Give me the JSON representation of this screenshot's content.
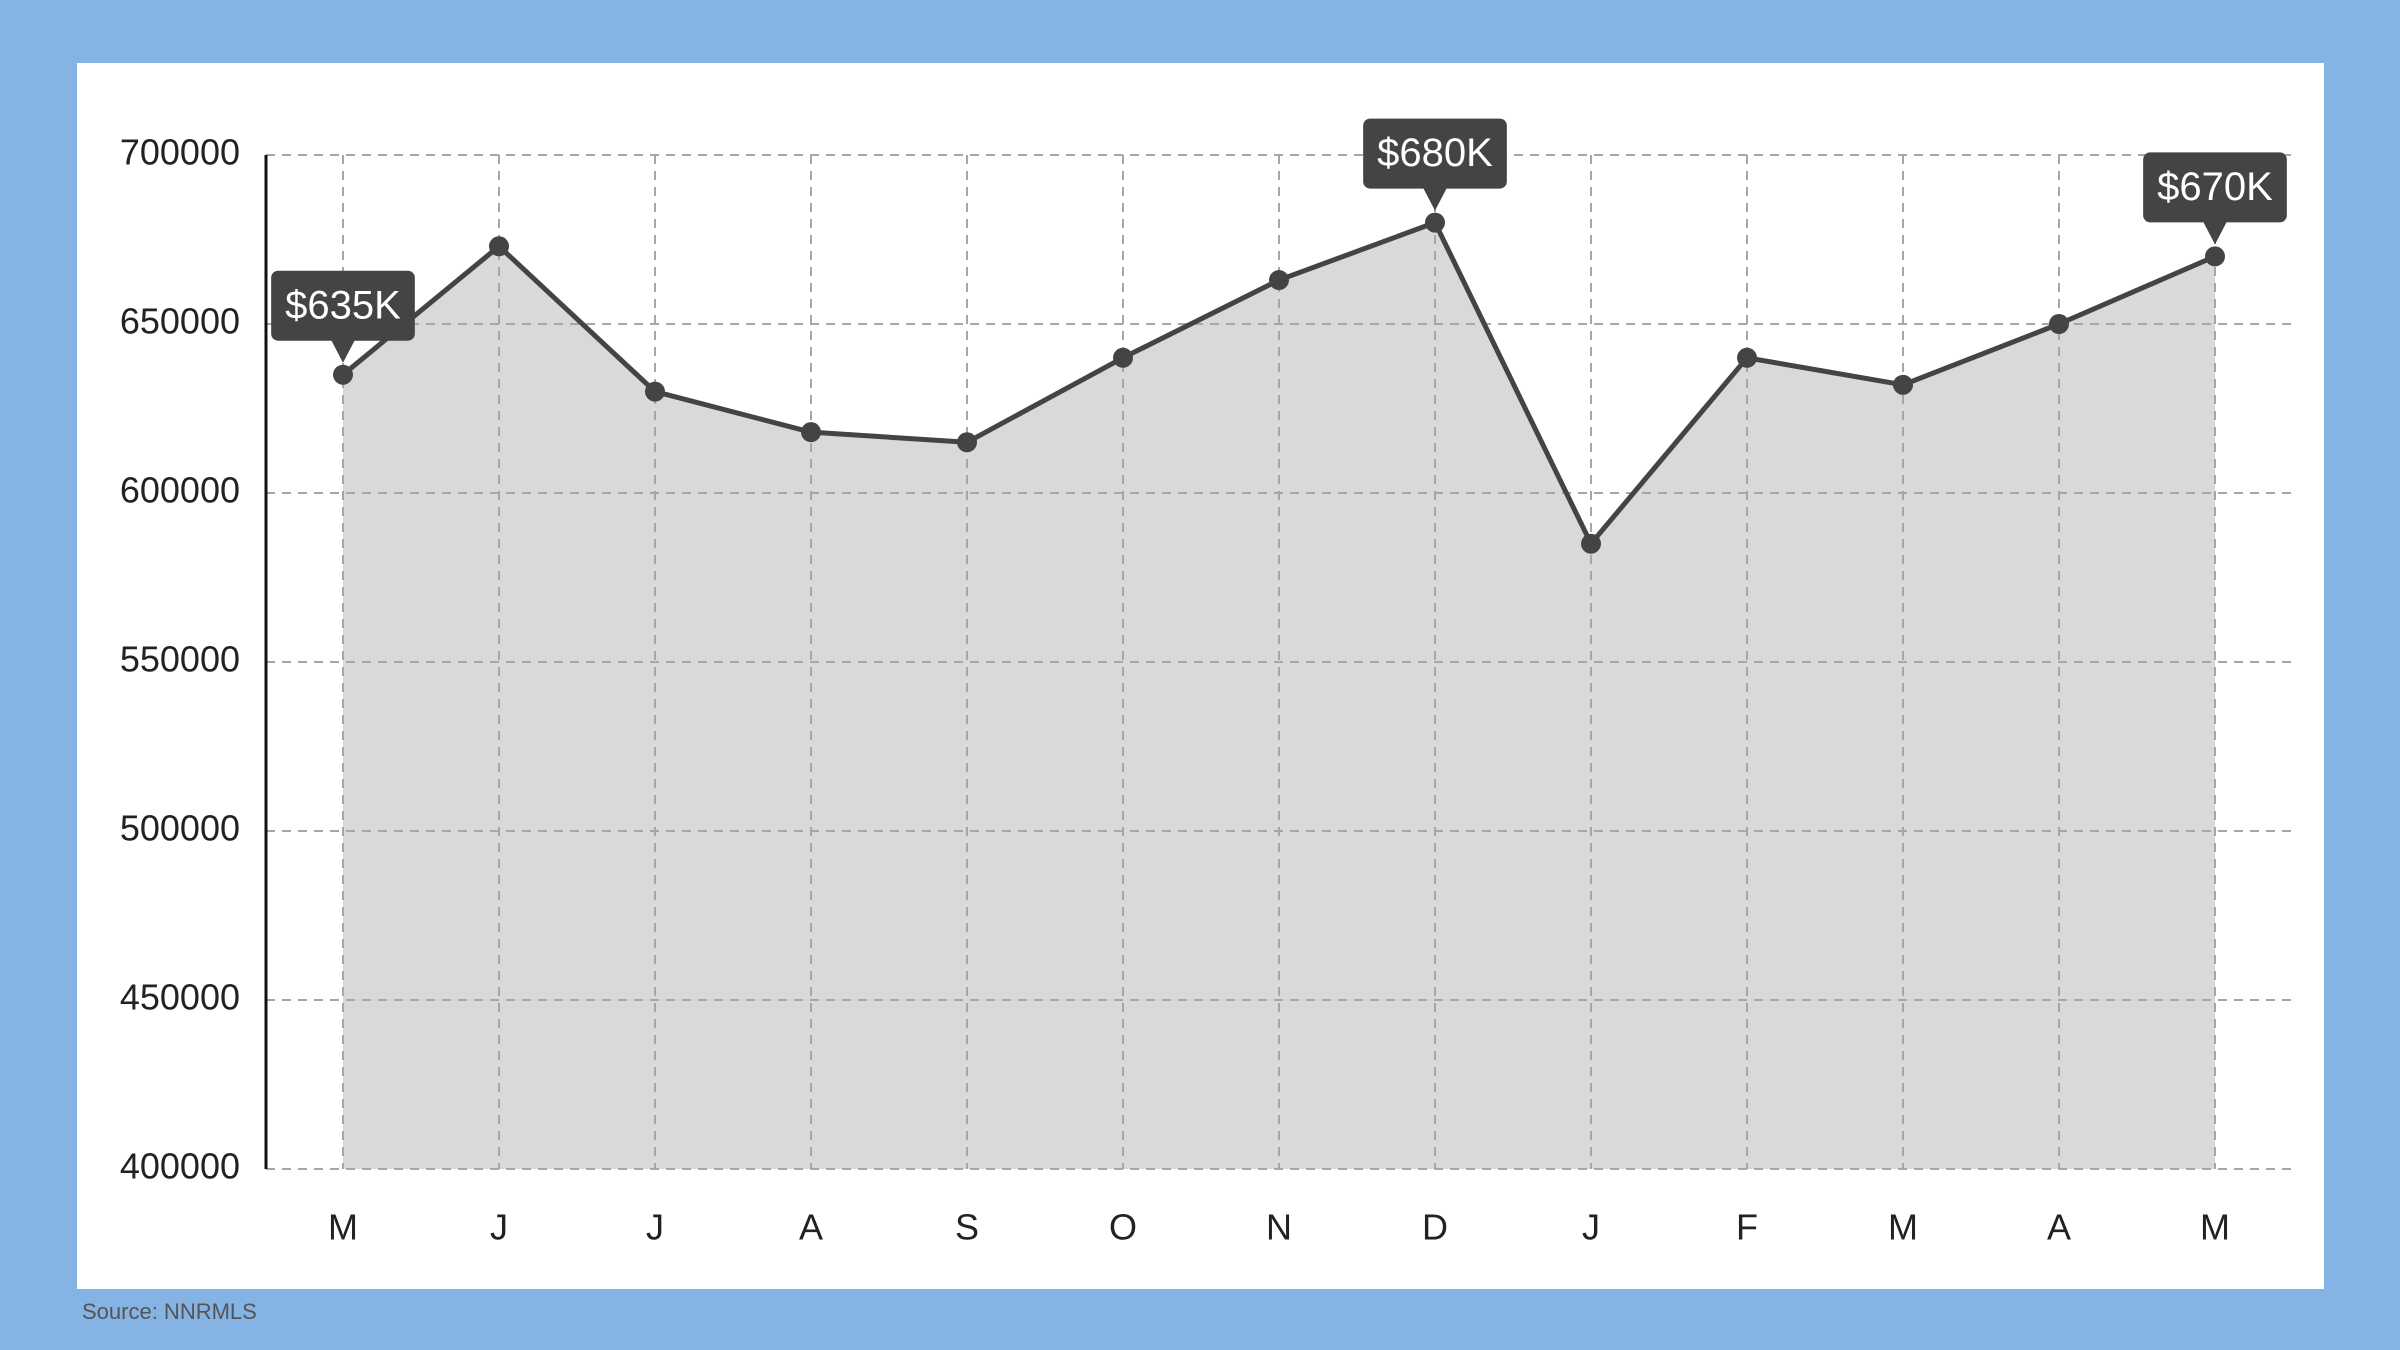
{
  "chart_data": {
    "type": "area",
    "categories": [
      "M",
      "J",
      "J",
      "A",
      "S",
      "O",
      "N",
      "D",
      "J",
      "F",
      "M",
      "A",
      "M"
    ],
    "values": [
      635000,
      673000,
      630000,
      618000,
      615000,
      640000,
      663000,
      680000,
      585000,
      640000,
      632000,
      650000,
      670000
    ],
    "value_labels": [
      "$635K",
      null,
      null,
      null,
      null,
      null,
      null,
      "$680K",
      null,
      null,
      null,
      null,
      "$670K"
    ],
    "color": "#444444",
    "fill": "#d9d9d9",
    "ylim": [
      400000,
      700000
    ],
    "yticks": [
      400000,
      450000,
      500000,
      550000,
      600000,
      650000,
      700000
    ],
    "grid": true
  },
  "source": "Source: NNRMLS"
}
